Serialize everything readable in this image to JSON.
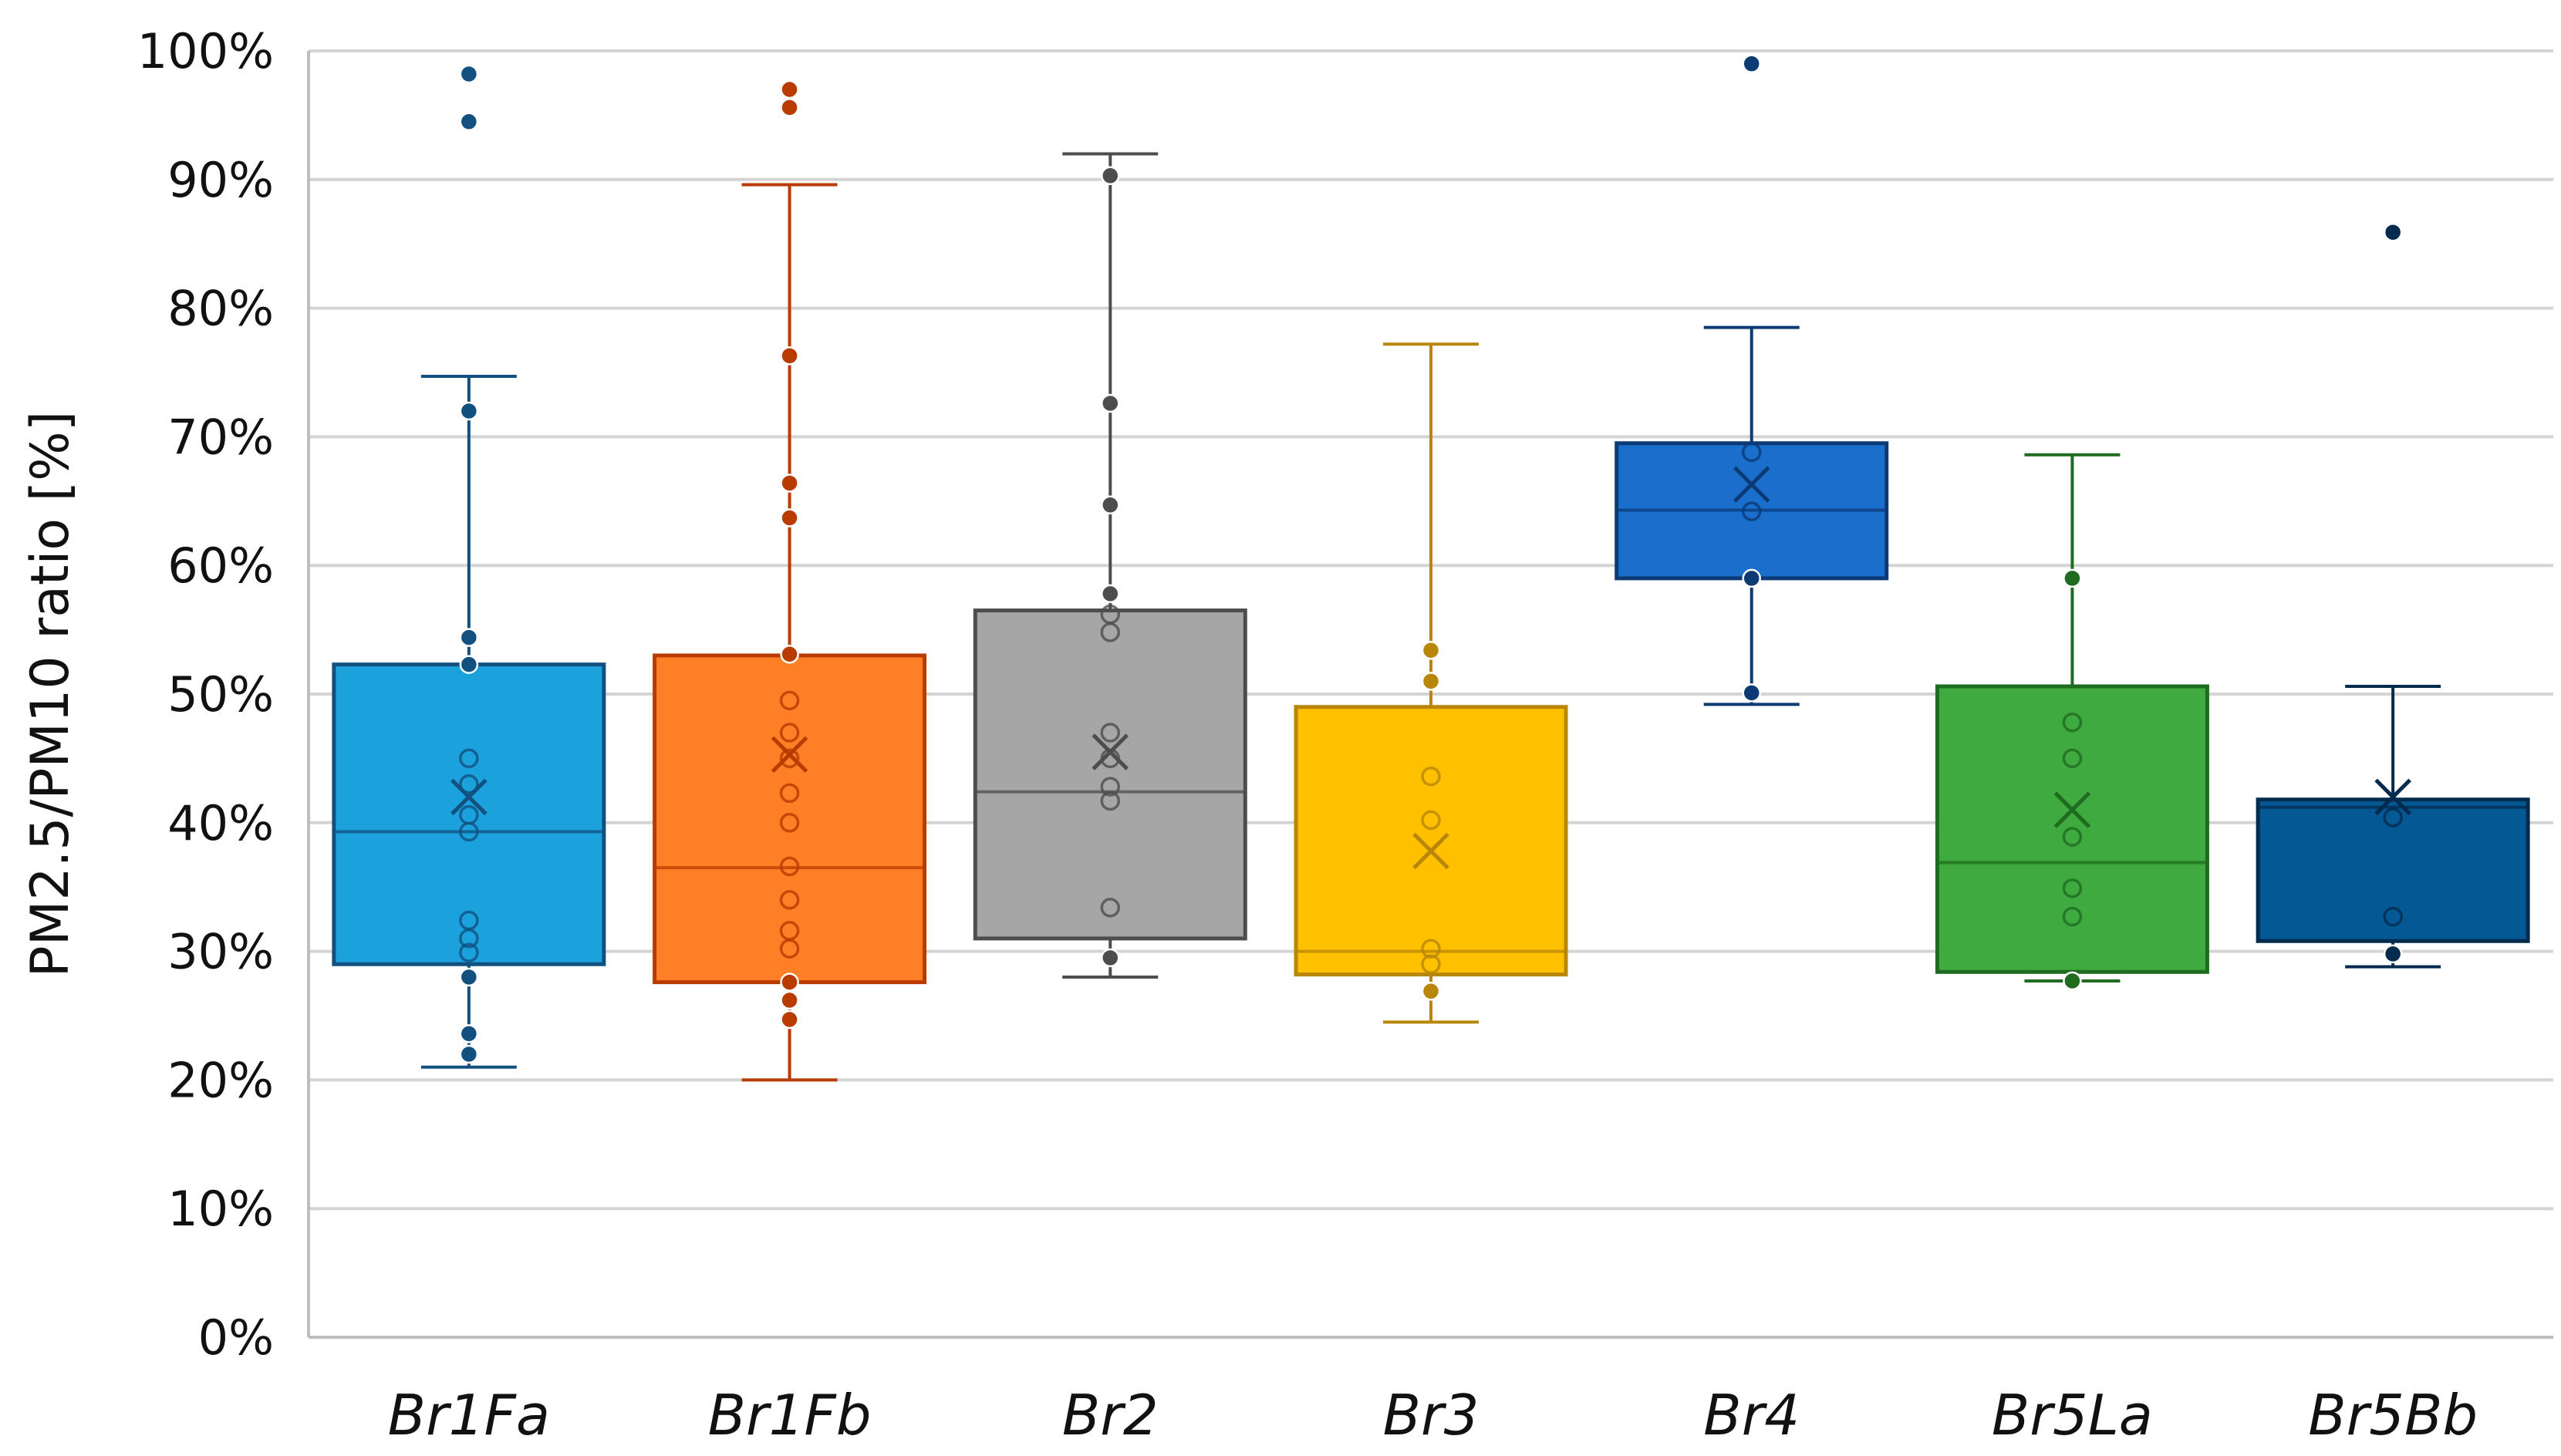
{
  "chart_data": {
    "type": "box",
    "title": "",
    "xlabel": "",
    "ylabel": "PM2.5/PM10 ratio [%]",
    "ylim": [
      0,
      100
    ],
    "yticks": [
      "0%",
      "10%",
      "20%",
      "30%",
      "40%",
      "50%",
      "60%",
      "70%",
      "80%",
      "90%",
      "100%"
    ],
    "grid": true,
    "legend": "none",
    "categories": [
      "Br1Fa",
      "Br1Fb",
      "Br2",
      "Br3",
      "Br4",
      "Br5La",
      "Br5Bb"
    ],
    "series": [
      {
        "category": "Br1Fa",
        "color": "#1ba1dc",
        "stroke": "#12507f",
        "min": 21.0,
        "q1": 29.0,
        "median": 39.3,
        "q3": 52.3,
        "max": 74.7,
        "mean": 42.0,
        "points": [
          22,
          23.6,
          28,
          29.9,
          31,
          32.4,
          39.3,
          40.6,
          43,
          45,
          52.3,
          54.4,
          72,
          94.5,
          98.2
        ],
        "outliers": [
          94.5,
          98.2
        ]
      },
      {
        "category": "Br1Fb",
        "color": "#ff7f27",
        "stroke": "#b83b00",
        "min": 20.0,
        "q1": 27.6,
        "median": 36.5,
        "q3": 53.0,
        "max": 89.6,
        "mean": 45.3,
        "points": [
          24.7,
          26.2,
          27.6,
          30.2,
          31.6,
          34,
          36.6,
          40,
          42.3,
          45,
          47,
          49.5,
          53.1,
          63.7,
          66.4,
          76.3,
          95.6,
          97
        ],
        "outliers": [
          95.6,
          97
        ]
      },
      {
        "category": "Br2",
        "color": "#a6a6a6",
        "stroke": "#4d4d4d",
        "min": 28.0,
        "q1": 31.0,
        "median": 42.4,
        "q3": 56.5,
        "max": 92.0,
        "mean": 45.5,
        "points": [
          29.5,
          33.4,
          41.7,
          42.8,
          45,
          47,
          54.8,
          56.2,
          57.8,
          64.7,
          72.6,
          90.3
        ],
        "outliers": []
      },
      {
        "category": "Br3",
        "color": "#ffc000",
        "stroke": "#b8860b",
        "min": 24.5,
        "q1": 28.2,
        "median": 30.0,
        "q3": 49.0,
        "max": 77.2,
        "mean": 37.8,
        "points": [
          26.9,
          29,
          30.2,
          40.2,
          43.6,
          51,
          53.4
        ],
        "outliers": []
      },
      {
        "category": "Br4",
        "color": "#1b6fcc",
        "stroke": "#0b3a75",
        "min": 49.2,
        "q1": 59.0,
        "median": 64.3,
        "q3": 69.5,
        "max": 78.5,
        "mean": 66.3,
        "points": [
          50.1,
          59,
          64.2,
          68.8,
          99
        ],
        "outliers": [
          99
        ]
      },
      {
        "category": "Br5La",
        "color": "#3faa3f",
        "stroke": "#1f6b1f",
        "min": 27.7,
        "q1": 28.4,
        "median": 36.9,
        "q3": 50.6,
        "max": 68.6,
        "mean": 41.0,
        "points": [
          27.7,
          32.7,
          34.9,
          38.9,
          45,
          47.8,
          59
        ],
        "outliers": []
      },
      {
        "category": "Br5Bb",
        "color": "#045994",
        "stroke": "#032b4d",
        "min": 28.8,
        "q1": 30.8,
        "median": 41.2,
        "q3": 41.8,
        "max": 50.6,
        "mean": 42.0,
        "points": [
          29.8,
          32.7,
          40.4,
          85.9
        ],
        "outliers": [
          85.9
        ]
      }
    ]
  }
}
